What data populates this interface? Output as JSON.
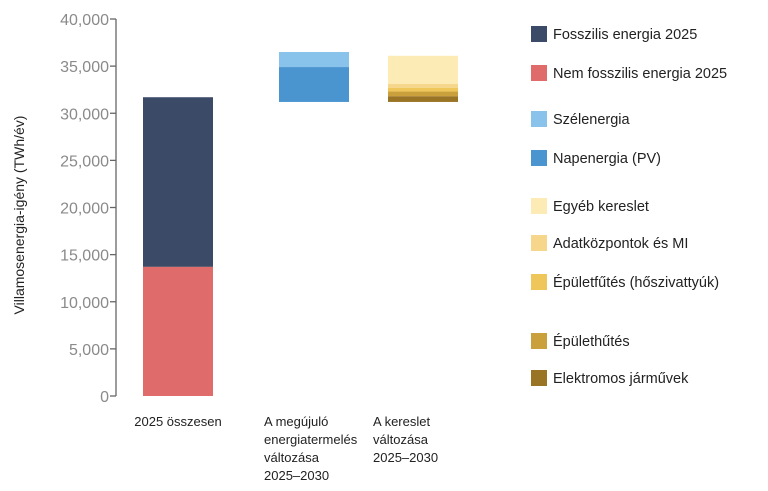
{
  "chart_data": {
    "type": "bar",
    "subtype": "stacked-waterfall",
    "title": "",
    "xlabel": "",
    "ylabel": "Villamosenergia-igény (TWh/év)",
    "ylim": [
      0,
      40000
    ],
    "yticks": [
      0,
      5000,
      10000,
      15000,
      20000,
      25000,
      30000,
      35000,
      40000
    ],
    "ytick_labels": [
      "0",
      "5,000",
      "10,000",
      "15,000",
      "20,000",
      "25,000",
      "30,000",
      "35,000",
      "40,000"
    ],
    "grid": false,
    "legend_placement": "right",
    "categories": [
      [
        "2025 összesen"
      ],
      [
        "A megújuló",
        "energiatermelés",
        "változása",
        "2025–2030"
      ],
      [
        "A kereslet",
        "változása",
        "2025–2030"
      ]
    ],
    "series": [
      {
        "name": "Fosszilis energia 2025",
        "color": "#3b4a66",
        "category": 0,
        "from": 13700,
        "to": 31700
      },
      {
        "name": "Nem fosszilis energia 2025",
        "color": "#e06b6b",
        "category": 0,
        "from": 0,
        "to": 13700
      },
      {
        "name": "Szélenergia",
        "color": "#89c2ea",
        "category": 1,
        "from": 34900,
        "to": 36500
      },
      {
        "name": "Napenergia (PV)",
        "color": "#4a94cf",
        "category": 1,
        "from": 31200,
        "to": 34900
      },
      {
        "name": "Egyéb kereslet",
        "color": "#fdebb5",
        "category": 2,
        "from": 33100,
        "to": 36100
      },
      {
        "name": "Adatközpontok és MI",
        "color": "#f6d68b",
        "category": 2,
        "from": 32700,
        "to": 33100
      },
      {
        "name": "Épületfűtés (hőszivattyúk)",
        "color": "#eec659",
        "category": 2,
        "from": 32300,
        "to": 32700
      },
      {
        "name": "Épülethűtés",
        "color": "#c9a03c",
        "category": 2,
        "from": 31800,
        "to": 32300
      },
      {
        "name": "Elektromos járművek",
        "color": "#9a7425",
        "category": 2,
        "from": 31200,
        "to": 31800
      }
    ]
  }
}
